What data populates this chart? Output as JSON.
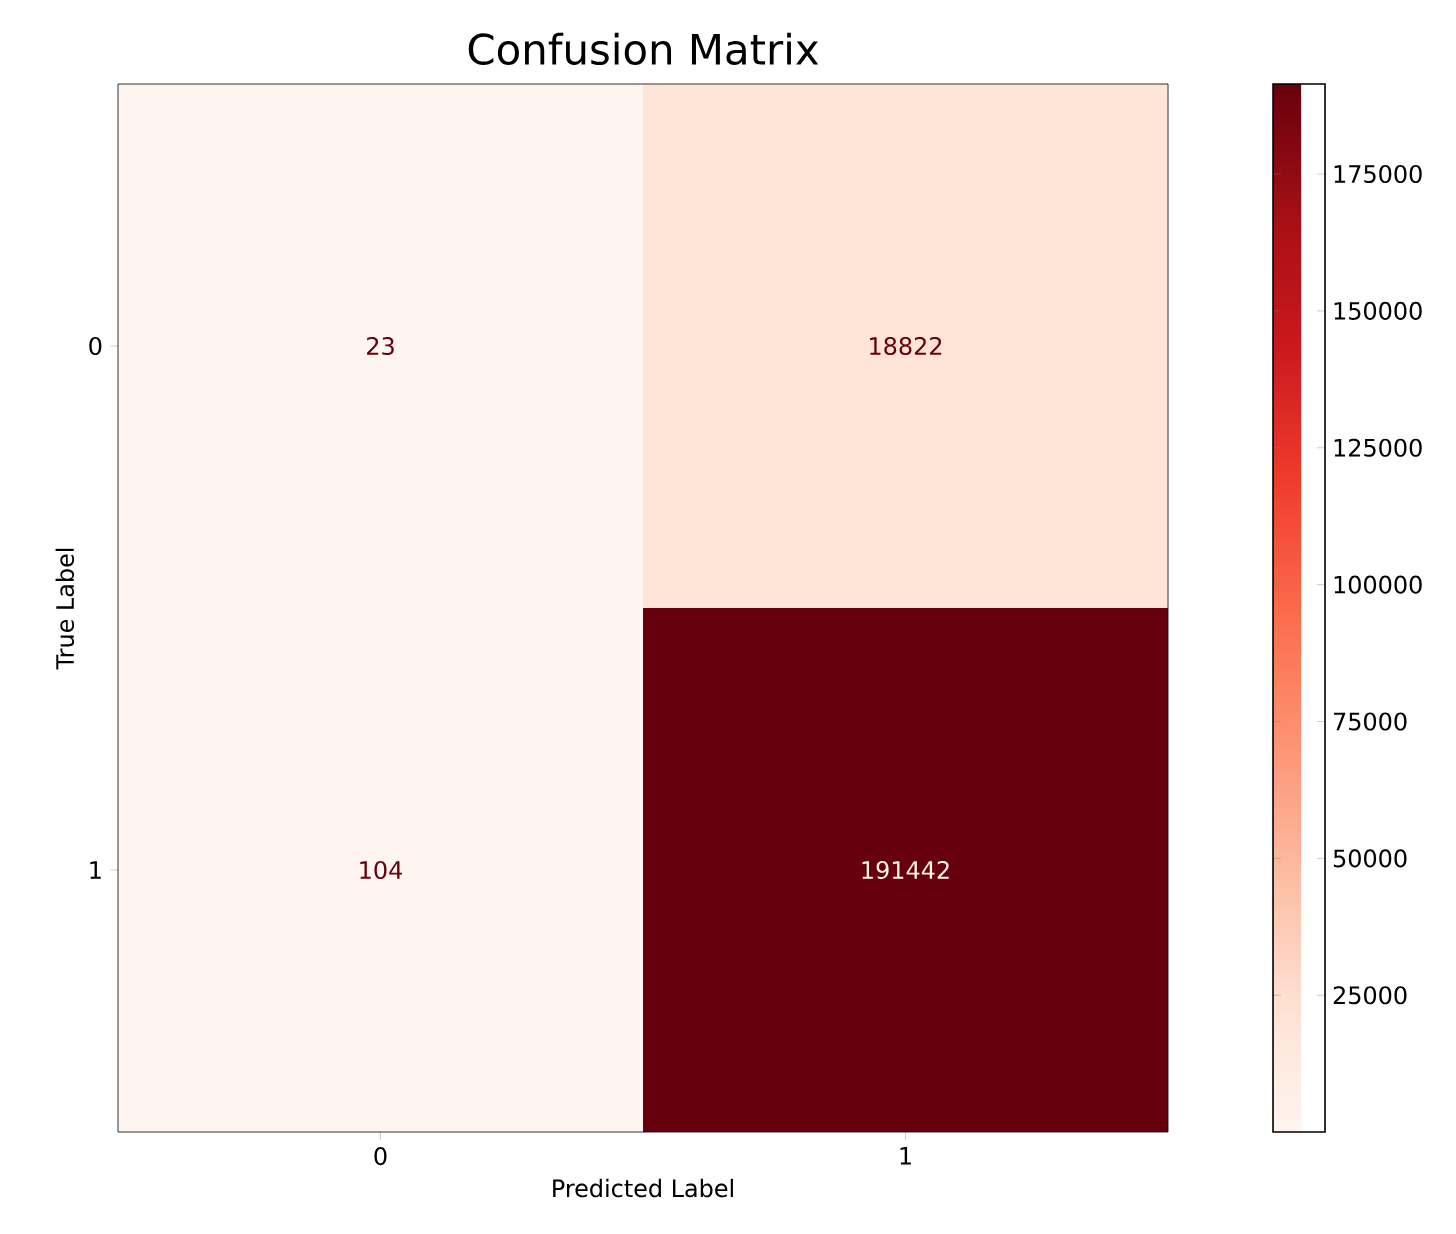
{
  "chart_data": {
    "type": "heatmap",
    "title": "Confusion Matrix",
    "xlabel": "Predicted Label",
    "ylabel": "True Label",
    "categories": [
      "0",
      "1"
    ],
    "y_categories": [
      "0",
      "1"
    ],
    "cells": [
      [
        23,
        18822
      ],
      [
        104,
        191442
      ]
    ],
    "clim": [
      23,
      191442
    ],
    "cticks": [
      25000,
      50000,
      75000,
      100000,
      125000,
      150000,
      175000
    ],
    "data_labels": true
  }
}
